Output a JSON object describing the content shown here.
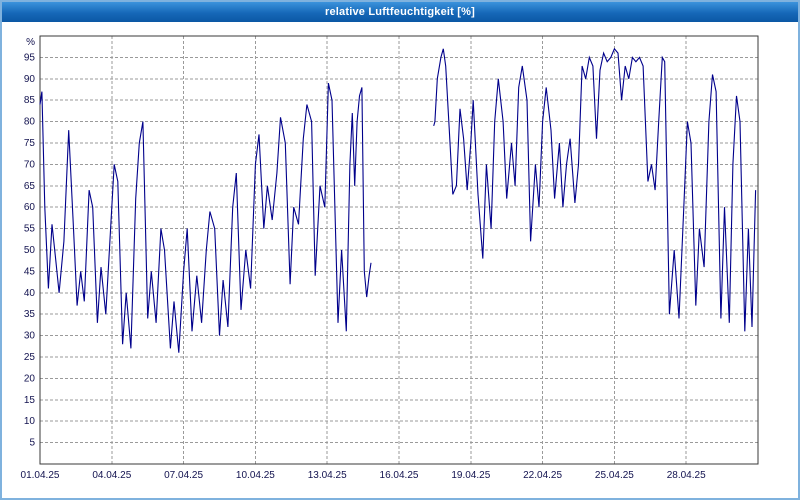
{
  "window": {
    "title": "relative Luftfeuchtigkeit [%]"
  },
  "colors": {
    "line": "#00008b",
    "grid": "#9a9a9a",
    "frame": "#7fb2de",
    "titlebar_top": "#3b93dc",
    "titlebar_bottom": "#0b57a4",
    "axis_text": "#12124f"
  },
  "chart_data": {
    "type": "line",
    "title": "relative Luftfeuchtigkeit [%]",
    "xlabel": "",
    "ylabel": "%",
    "ylim": [
      0,
      100
    ],
    "xlim_days": [
      1,
      31
    ],
    "grid": true,
    "legend": "none",
    "y_ticks": [
      5,
      10,
      15,
      20,
      25,
      30,
      35,
      40,
      45,
      50,
      55,
      60,
      65,
      70,
      75,
      80,
      85,
      90,
      95
    ],
    "x_ticks": [
      {
        "day": 1,
        "label": "01.04.25"
      },
      {
        "day": 4,
        "label": "04.04.25"
      },
      {
        "day": 7,
        "label": "07.04.25"
      },
      {
        "day": 10,
        "label": "10.04.25"
      },
      {
        "day": 13,
        "label": "13.04.25"
      },
      {
        "day": 16,
        "label": "16.04.25"
      },
      {
        "day": 19,
        "label": "19.04.25"
      },
      {
        "day": 22,
        "label": "22.04.25"
      },
      {
        "day": 25,
        "label": "25.04.25"
      },
      {
        "day": 28,
        "label": "28.04.25"
      }
    ],
    "series": [
      {
        "name": "relative Luftfeuchtigkeit",
        "unit": "%",
        "segments": [
          [
            [
              1.0,
              84
            ],
            [
              1.08,
              87
            ],
            [
              1.2,
              60
            ],
            [
              1.35,
              41
            ],
            [
              1.5,
              56
            ],
            [
              1.65,
              48
            ],
            [
              1.8,
              40
            ],
            [
              2.0,
              52
            ],
            [
              2.2,
              78
            ],
            [
              2.4,
              55
            ],
            [
              2.55,
              37
            ],
            [
              2.7,
              45
            ],
            [
              2.85,
              38
            ],
            [
              3.05,
              64
            ],
            [
              3.2,
              60
            ],
            [
              3.4,
              33
            ],
            [
              3.55,
              46
            ],
            [
              3.75,
              35
            ],
            [
              3.95,
              55
            ],
            [
              4.1,
              70
            ],
            [
              4.25,
              66
            ],
            [
              4.45,
              28
            ],
            [
              4.6,
              40
            ],
            [
              4.8,
              27
            ],
            [
              5.0,
              62
            ],
            [
              5.15,
              75
            ],
            [
              5.3,
              80
            ],
            [
              5.5,
              34
            ],
            [
              5.65,
              45
            ],
            [
              5.85,
              33
            ],
            [
              6.05,
              55
            ],
            [
              6.2,
              50
            ],
            [
              6.45,
              27
            ],
            [
              6.6,
              38
            ],
            [
              6.8,
              26
            ],
            [
              7.0,
              45
            ],
            [
              7.15,
              55
            ],
            [
              7.35,
              31
            ],
            [
              7.55,
              44
            ],
            [
              7.75,
              33
            ],
            [
              7.95,
              50
            ],
            [
              8.1,
              59
            ],
            [
              8.3,
              55
            ],
            [
              8.5,
              30
            ],
            [
              8.65,
              43
            ],
            [
              8.85,
              32
            ],
            [
              9.05,
              60
            ],
            [
              9.2,
              68
            ],
            [
              9.4,
              36
            ],
            [
              9.6,
              50
            ],
            [
              9.8,
              41
            ],
            [
              10.0,
              70
            ],
            [
              10.15,
              77
            ],
            [
              10.35,
              55
            ],
            [
              10.5,
              65
            ],
            [
              10.7,
              57
            ],
            [
              10.9,
              68
            ],
            [
              11.05,
              81
            ],
            [
              11.25,
              75
            ],
            [
              11.45,
              42
            ],
            [
              11.6,
              60
            ],
            [
              11.8,
              56
            ],
            [
              12.0,
              76
            ],
            [
              12.15,
              84
            ],
            [
              12.35,
              80
            ],
            [
              12.5,
              44
            ],
            [
              12.7,
              65
            ],
            [
              12.9,
              60
            ],
            [
              13.05,
              89
            ],
            [
              13.2,
              85
            ],
            [
              13.45,
              33
            ],
            [
              13.6,
              50
            ],
            [
              13.8,
              31
            ],
            [
              13.95,
              70
            ],
            [
              14.05,
              82
            ],
            [
              14.15,
              65
            ],
            [
              14.25,
              80
            ],
            [
              14.35,
              86
            ],
            [
              14.45,
              88
            ],
            [
              14.55,
              45
            ],
            [
              14.65,
              39
            ],
            [
              14.75,
              44
            ],
            [
              14.83,
              47
            ]
          ],
          [
            [
              17.45,
              79
            ],
            [
              17.5,
              80
            ],
            [
              17.6,
              90
            ],
            [
              17.75,
              95
            ],
            [
              17.85,
              97
            ],
            [
              17.95,
              93
            ],
            [
              18.1,
              78
            ],
            [
              18.25,
              63
            ],
            [
              18.4,
              65
            ],
            [
              18.55,
              83
            ],
            [
              18.7,
              76
            ],
            [
              18.85,
              64
            ],
            [
              19.0,
              75
            ],
            [
              19.1,
              85
            ],
            [
              19.3,
              63
            ],
            [
              19.5,
              48
            ],
            [
              19.65,
              70
            ],
            [
              19.85,
              55
            ],
            [
              20.0,
              80
            ],
            [
              20.15,
              90
            ],
            [
              20.35,
              80
            ],
            [
              20.5,
              62
            ],
            [
              20.7,
              75
            ],
            [
              20.85,
              65
            ],
            [
              21.0,
              88
            ],
            [
              21.15,
              93
            ],
            [
              21.35,
              85
            ],
            [
              21.5,
              52
            ],
            [
              21.7,
              70
            ],
            [
              21.85,
              60
            ],
            [
              22.0,
              80
            ],
            [
              22.15,
              88
            ],
            [
              22.35,
              78
            ],
            [
              22.5,
              62
            ],
            [
              22.7,
              75
            ],
            [
              22.85,
              60
            ],
            [
              23.0,
              70
            ],
            [
              23.15,
              76
            ],
            [
              23.35,
              61
            ],
            [
              23.5,
              70
            ],
            [
              23.65,
              93
            ],
            [
              23.8,
              90
            ],
            [
              23.95,
              95
            ],
            [
              24.1,
              93
            ],
            [
              24.25,
              76
            ],
            [
              24.4,
              92
            ],
            [
              24.55,
              96
            ],
            [
              24.7,
              94
            ],
            [
              24.85,
              95
            ],
            [
              25.0,
              97
            ],
            [
              25.15,
              96
            ],
            [
              25.3,
              85
            ],
            [
              25.45,
              93
            ],
            [
              25.6,
              90
            ],
            [
              25.75,
              95
            ],
            [
              25.9,
              94
            ],
            [
              26.05,
              95
            ],
            [
              26.2,
              93
            ],
            [
              26.4,
              66
            ],
            [
              26.55,
              70
            ],
            [
              26.7,
              64
            ],
            [
              26.85,
              80
            ],
            [
              27.0,
              95
            ],
            [
              27.1,
              94
            ],
            [
              27.3,
              35
            ],
            [
              27.5,
              50
            ],
            [
              27.7,
              34
            ],
            [
              27.9,
              60
            ],
            [
              28.05,
              80
            ],
            [
              28.2,
              75
            ],
            [
              28.4,
              37
            ],
            [
              28.55,
              55
            ],
            [
              28.75,
              46
            ],
            [
              28.95,
              80
            ],
            [
              29.1,
              91
            ],
            [
              29.25,
              87
            ],
            [
              29.45,
              34
            ],
            [
              29.6,
              60
            ],
            [
              29.8,
              33
            ],
            [
              29.95,
              70
            ],
            [
              30.1,
              86
            ],
            [
              30.25,
              80
            ],
            [
              30.45,
              31
            ],
            [
              30.6,
              55
            ],
            [
              30.75,
              32
            ],
            [
              30.9,
              64
            ]
          ]
        ]
      }
    ]
  }
}
